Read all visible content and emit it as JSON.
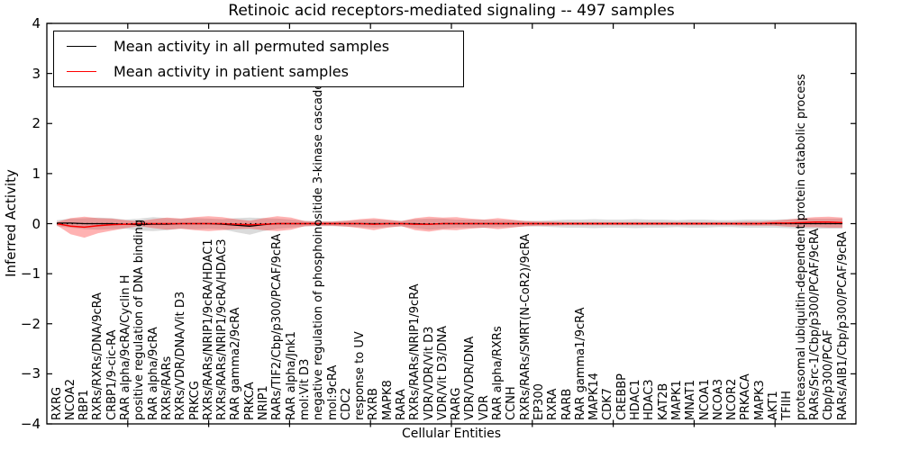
{
  "title": "Retinoic acid receptors-mediated signaling -- 497 samples",
  "axes": {
    "x_label": "Cellular Entities",
    "y_label": "Inferred Activity",
    "y_tick_labels": [
      "4",
      "3",
      "2",
      "1",
      "0",
      "−1",
      "−2",
      "−3",
      "−4"
    ],
    "y_tick_values": [
      4,
      3,
      2,
      1,
      0,
      -1,
      -2,
      -3,
      -4
    ]
  },
  "legend": {
    "items": [
      {
        "label": "Mean activity in all permuted samples",
        "color": "#000000"
      },
      {
        "label": "Mean activity in patient samples",
        "color": "#ff0000"
      }
    ]
  },
  "colors": {
    "permuted_line": "#000000",
    "patient_line": "#ff0000",
    "permuted_band": "rgba(0,0,0,0.14)",
    "patient_band": "rgba(255,0,0,0.30)",
    "frame": "#000000",
    "background": "#ffffff"
  },
  "chart_data": {
    "type": "line",
    "title": "Retinoic acid receptors-mediated signaling -- 497 samples",
    "xlabel": "Cellular Entities",
    "ylabel": "Inferred Activity",
    "ylim": [
      -4,
      4
    ],
    "grid": false,
    "legend_position": "upper left",
    "categories": [
      "RXRG",
      "NCOA2",
      "RBP1",
      "RXRs/RXRs/DNA/9cRA",
      "CRBP1/9-cic-RA",
      "RAR alpha/9cRA/Cyclin H",
      "positive regulation of DNA binding",
      "RAR alpha/9cRA",
      "RXRs/RARs",
      "RXRs/VDR/DNA/Vit D3",
      "PRKCG",
      "RXRs/RARs/NRIP1/9cRA/HDAC1",
      "RXRs/RARs/NRIP1/9cRA/HDAC3",
      "RAR gamma2/9cRA",
      "PRKCA",
      "NRIP1",
      "RARs/TIF2/Cbp/p300/PCAF/9cRA",
      "RAR alpha/Jnk1",
      "mol:Vit D3",
      "negative regulation of phosphoinositide 3-kinase cascade",
      "mol:9cRA",
      "CDC2",
      "response to UV",
      "RXRB",
      "MAPK8",
      "RARA",
      "RXRs/RARs/NRIP1/9cRA",
      "VDR/VDR/Vit D3",
      "VDR/Vit D3/DNA",
      "RARG",
      "VDR/VDR/DNA",
      "VDR",
      "RAR alpha/RXRs",
      "CCNH",
      "RXRs/RARs/SMRT(N-CoR2)/9cRA",
      "EP300",
      "RXRA",
      "RARB",
      "RAR gamma1/9cRA",
      "MAPK14",
      "CDK7",
      "CREBBP",
      "HDAC1",
      "HDAC3",
      "KAT2B",
      "MAPK1",
      "MNAT1",
      "NCOA1",
      "NCOA3",
      "NCOR2",
      "PRKACA",
      "MAPK3",
      "AKT1",
      "TFIIH",
      "proteasomal ubiquitin-dependent protein catabolic process",
      "RARs/Src-1/Cbp/p300/PCAF/9cRA",
      "Cbp/p300/PCAF",
      "RARs/AIB1/Cbp/p300/PCAF/9cRA"
    ],
    "series": [
      {
        "id": "mean_permuted",
        "name": "Mean activity in all permuted samples",
        "style": "line",
        "color": "#000000",
        "values": [
          0.01,
          0.01,
          0,
          0,
          0,
          -0.01,
          -0.02,
          -0.01,
          -0.01,
          0,
          0,
          0,
          -0.01,
          -0.03,
          -0.05,
          -0.02,
          0,
          0,
          0,
          0,
          0,
          0,
          0,
          0,
          0,
          0,
          0,
          -0.01,
          0,
          0,
          0,
          0,
          0,
          0,
          0,
          0,
          0,
          0,
          0,
          0,
          0,
          0,
          0,
          0,
          0,
          0,
          0,
          0,
          0,
          0,
          0,
          0,
          0,
          0,
          0,
          0,
          0,
          0
        ]
      },
      {
        "id": "std_permuted",
        "name": "Std of activity in all permuted samples (band half-width)",
        "style": "band",
        "color": "rgba(0,0,0,0.14)",
        "values": [
          0.06,
          0.09,
          0.11,
          0.12,
          0.11,
          0.09,
          0.12,
          0.14,
          0.12,
          0.1,
          0.11,
          0.1,
          0.1,
          0.14,
          0.17,
          0.13,
          0.1,
          0.08,
          0.06,
          0.05,
          0.05,
          0.06,
          0.07,
          0.08,
          0.07,
          0.06,
          0.09,
          0.11,
          0.1,
          0.08,
          0.08,
          0.08,
          0.07,
          0.07,
          0.06,
          0.06,
          0.07,
          0.08,
          0.08,
          0.09,
          0.08,
          0.08,
          0.09,
          0.08,
          0.08,
          0.07,
          0.08,
          0.08,
          0.07,
          0.07,
          0.08,
          0.08,
          0.08,
          0.09,
          0.1,
          0.1,
          0.1,
          0.1
        ]
      },
      {
        "id": "mean_patient",
        "name": "Mean activity in patient samples",
        "style": "line",
        "color": "#ff0000",
        "values": [
          0,
          -0.05,
          -0.07,
          -0.04,
          -0.02,
          -0.01,
          0,
          0,
          0,
          0,
          0,
          0,
          0,
          -0.01,
          -0.02,
          -0.01,
          0,
          0,
          0,
          0,
          0,
          0,
          0,
          -0.01,
          0,
          0,
          -0.01,
          -0.01,
          0,
          0,
          0,
          0,
          0,
          0,
          0,
          0,
          0,
          0,
          0,
          0,
          0,
          0,
          0,
          0,
          0,
          0,
          0,
          0,
          0,
          0,
          0,
          0,
          0.01,
          0.01,
          0.02,
          0.03,
          0.03,
          0.02
        ]
      },
      {
        "id": "std_patient",
        "name": "Std of activity in patient samples (band half-width)",
        "style": "band",
        "color": "rgba(255,0,0,0.30)",
        "values": [
          0.03,
          0.16,
          0.21,
          0.15,
          0.12,
          0.08,
          0.05,
          0.09,
          0.12,
          0.1,
          0.13,
          0.15,
          0.13,
          0.1,
          0.08,
          0.12,
          0.15,
          0.12,
          0.05,
          0.04,
          0.04,
          0.06,
          0.09,
          0.12,
          0.08,
          0.05,
          0.12,
          0.15,
          0.12,
          0.13,
          0.1,
          0.08,
          0.11,
          0.08,
          0.05,
          0.04,
          0.04,
          0.03,
          0.03,
          0.03,
          0.03,
          0.03,
          0.03,
          0.03,
          0.03,
          0.03,
          0.03,
          0.03,
          0.03,
          0.03,
          0.04,
          0.04,
          0.05,
          0.07,
          0.09,
          0.1,
          0.11,
          0.1
        ]
      }
    ]
  }
}
